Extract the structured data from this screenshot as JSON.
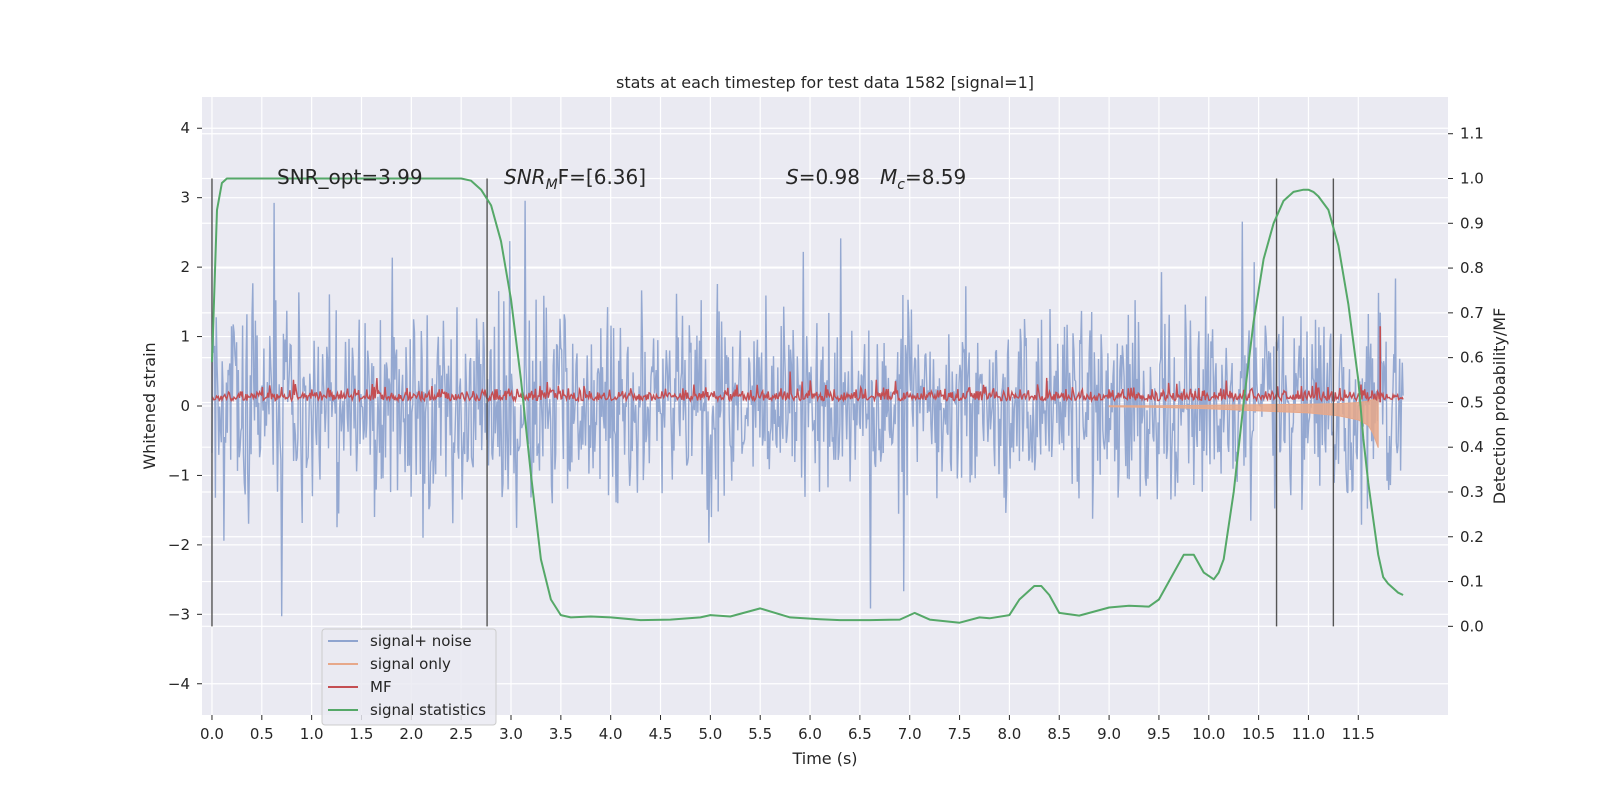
{
  "chart_data": {
    "type": "line",
    "title": "stats at each timestep for test data 1582 [signal=1]",
    "xlabel": "Time (s)",
    "ylabel": "Whitened strain",
    "y2label": "Detection probability/MF",
    "xlim": [
      -0.1,
      12.4
    ],
    "ylim": [
      -4.45,
      4.45
    ],
    "y2lim": [
      -0.198,
      1.182
    ],
    "grid": true,
    "x_ticks": [
      "0.0",
      "0.5",
      "1.0",
      "1.5",
      "2.0",
      "2.5",
      "3.0",
      "3.5",
      "4.0",
      "4.5",
      "5.0",
      "5.5",
      "6.0",
      "6.5",
      "7.0",
      "7.5",
      "8.0",
      "8.5",
      "9.0",
      "9.5",
      "10.0",
      "10.5",
      "11.0",
      "11.5"
    ],
    "y_ticks": [
      "4",
      "3",
      "2",
      "1",
      "0",
      "−1",
      "−2",
      "−3",
      "−4"
    ],
    "y2_ticks": [
      "1.1",
      "1.0",
      "0.9",
      "0.8",
      "0.7",
      "0.6",
      "0.5",
      "0.4",
      "0.3",
      "0.2",
      "0.1",
      "0.0"
    ],
    "annotations": {
      "snr_opt": "SNR_opt=3.99",
      "snr_mf_main": "SNR",
      "snr_mf_sub": "M",
      "snr_mf_rest": "F=[6.36]",
      "s_var": "S",
      "s_rest": "=0.98",
      "mc_var": "M",
      "mc_sub": "c",
      "mc_rest": "=8.59"
    },
    "vlines_x": [
      0.0,
      2.76,
      10.68,
      11.25
    ],
    "legend": {
      "placement": "lower-left",
      "entries": [
        "signal+ noise",
        "signal only",
        "MF",
        "signal statistics"
      ]
    },
    "colors": {
      "signal_noise": "#8fa4cf",
      "signal_only": "#e7a88a",
      "mf": "#c44e52",
      "statistics": "#55a868",
      "plot_bg": "#eaeaf2",
      "grid": "#ffffff"
    },
    "series": [
      {
        "name": "signal statistics",
        "axis": "right",
        "x": [
          0.0,
          0.05,
          0.1,
          0.15,
          0.2,
          0.4,
          0.8,
          1.2,
          1.6,
          2.0,
          2.3,
          2.5,
          2.6,
          2.7,
          2.8,
          2.9,
          3.0,
          3.1,
          3.2,
          3.3,
          3.4,
          3.5,
          3.6,
          3.8,
          4.0,
          4.3,
          4.6,
          4.9,
          5.0,
          5.2,
          5.5,
          5.8,
          6.1,
          6.3,
          6.6,
          6.9,
          7.05,
          7.2,
          7.5,
          7.7,
          7.8,
          8.0,
          8.1,
          8.25,
          8.32,
          8.4,
          8.5,
          8.7,
          9.0,
          9.2,
          9.4,
          9.5,
          9.6,
          9.75,
          9.85,
          9.95,
          10.05,
          10.1,
          10.15,
          10.25,
          10.35,
          10.45,
          10.55,
          10.65,
          10.75,
          10.85,
          10.95,
          11.0,
          11.05,
          11.1,
          11.2,
          11.3,
          11.4,
          11.5,
          11.55,
          11.6,
          11.65,
          11.7,
          11.75,
          11.8,
          11.9,
          11.95
        ],
        "values": [
          0.59,
          0.93,
          0.99,
          1.0,
          1.0,
          1.0,
          1.0,
          1.0,
          1.0,
          1.0,
          1.0,
          1.0,
          0.995,
          0.975,
          0.94,
          0.86,
          0.73,
          0.55,
          0.34,
          0.15,
          0.06,
          0.025,
          0.02,
          0.022,
          0.02,
          0.014,
          0.015,
          0.02,
          0.025,
          0.022,
          0.04,
          0.02,
          0.016,
          0.014,
          0.014,
          0.015,
          0.03,
          0.015,
          0.008,
          0.02,
          0.018,
          0.025,
          0.06,
          0.09,
          0.09,
          0.07,
          0.03,
          0.024,
          0.042,
          0.046,
          0.044,
          0.06,
          0.1,
          0.16,
          0.16,
          0.12,
          0.105,
          0.12,
          0.15,
          0.3,
          0.5,
          0.68,
          0.82,
          0.9,
          0.95,
          0.97,
          0.975,
          0.975,
          0.97,
          0.96,
          0.93,
          0.85,
          0.72,
          0.55,
          0.42,
          0.32,
          0.24,
          0.16,
          0.11,
          0.095,
          0.075,
          0.07
        ]
      },
      {
        "name": "signal only",
        "axis": "left",
        "x": [
          9.0,
          9.5,
          10.0,
          10.5,
          11.0,
          11.3,
          11.5,
          11.6,
          11.65,
          11.7
        ],
        "values": [
          -0.01,
          -0.02,
          -0.04,
          -0.07,
          -0.1,
          -0.14,
          -0.2,
          -0.28,
          -0.4,
          -0.6
        ]
      }
    ]
  }
}
